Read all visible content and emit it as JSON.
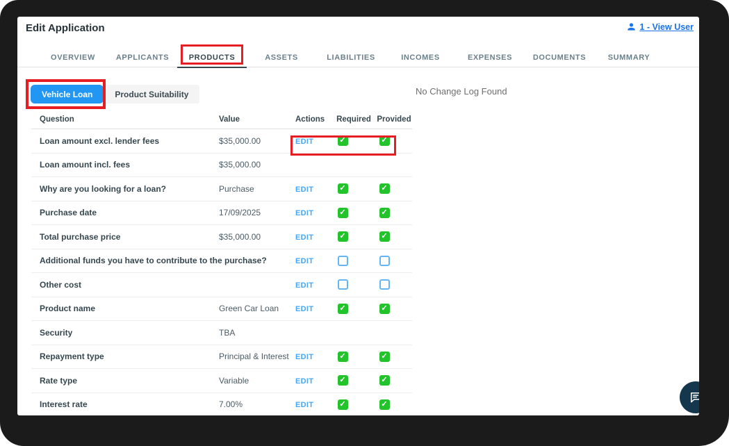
{
  "window": {
    "title": "Edit Application",
    "user_link": {
      "label": "1 - View User",
      "icon": "person-icon"
    }
  },
  "tabs": {
    "items": [
      {
        "label": "OVERVIEW",
        "active": false,
        "annotated": false
      },
      {
        "label": "APPLICANTS",
        "active": false,
        "annotated": false
      },
      {
        "label": "PRODUCTS",
        "active": true,
        "annotated": true
      },
      {
        "label": "ASSETS",
        "active": false,
        "annotated": false
      },
      {
        "label": "LIABILITIES",
        "active": false,
        "annotated": false
      },
      {
        "label": "INCOMES",
        "active": false,
        "annotated": false
      },
      {
        "label": "EXPENSES",
        "active": false,
        "annotated": false
      },
      {
        "label": "DOCUMENTS",
        "active": false,
        "annotated": false
      },
      {
        "label": "SUMMARY",
        "active": false,
        "annotated": false
      }
    ]
  },
  "subtabs": {
    "items": [
      {
        "label": "Vehicle Loan",
        "active": true,
        "annotated": true
      },
      {
        "label": "Product Suitability",
        "active": false,
        "annotated": false
      }
    ]
  },
  "change_log": {
    "empty_text": "No Change Log Found"
  },
  "table": {
    "columns": [
      "Question",
      "Value",
      "Actions",
      "Required",
      "Provided"
    ],
    "edit_label": "EDIT",
    "rows": [
      {
        "question": "Loan amount excl. lender fees",
        "value": "$35,000.00",
        "edit": true,
        "required": "checked",
        "provided": "checked",
        "annotated": true
      },
      {
        "question": "Loan amount incl. fees",
        "value": "$35,000.00",
        "edit": false,
        "required": "none",
        "provided": "none",
        "annotated": false
      },
      {
        "question": "Why are you looking for a loan?",
        "value": "Purchase",
        "edit": true,
        "required": "checked",
        "provided": "checked",
        "annotated": false
      },
      {
        "question": "Purchase date",
        "value": "17/09/2025",
        "edit": true,
        "required": "checked",
        "provided": "checked",
        "annotated": false
      },
      {
        "question": "Total purchase price",
        "value": "$35,000.00",
        "edit": true,
        "required": "checked",
        "provided": "checked",
        "annotated": false
      },
      {
        "question": "Additional funds you have to contribute to the purchase?",
        "value": "",
        "edit": true,
        "required": "unchecked",
        "provided": "unchecked",
        "annotated": false
      },
      {
        "question": "Other cost",
        "value": "",
        "edit": true,
        "required": "unchecked",
        "provided": "unchecked",
        "annotated": false
      },
      {
        "question": "Product name",
        "value": "Green Car Loan",
        "edit": true,
        "required": "checked",
        "provided": "checked",
        "annotated": false
      },
      {
        "question": "Security",
        "value": "TBA",
        "edit": false,
        "required": "none",
        "provided": "none",
        "annotated": false
      },
      {
        "question": "Repayment type",
        "value": "Principal & Interest",
        "edit": true,
        "required": "checked",
        "provided": "checked",
        "annotated": false
      },
      {
        "question": "Rate type",
        "value": "Variable",
        "edit": true,
        "required": "checked",
        "provided": "checked",
        "annotated": false
      },
      {
        "question": "Interest rate",
        "value": "7.00%",
        "edit": true,
        "required": "checked",
        "provided": "checked",
        "annotated": false
      }
    ]
  },
  "fab": {
    "icon": "chat-icon"
  },
  "colors": {
    "annotation_red": "#e61e24",
    "active_subtab_blue": "#2196f3",
    "edit_link_blue": "#45a7f5",
    "checked_green": "#23c32b",
    "unchecked_border_blue": "#64b5f6",
    "active_tab_ink": "#37474f",
    "link_blue": "#1a73e8",
    "fab_navy": "#14374e",
    "frame_black": "#1b1b1b"
  }
}
